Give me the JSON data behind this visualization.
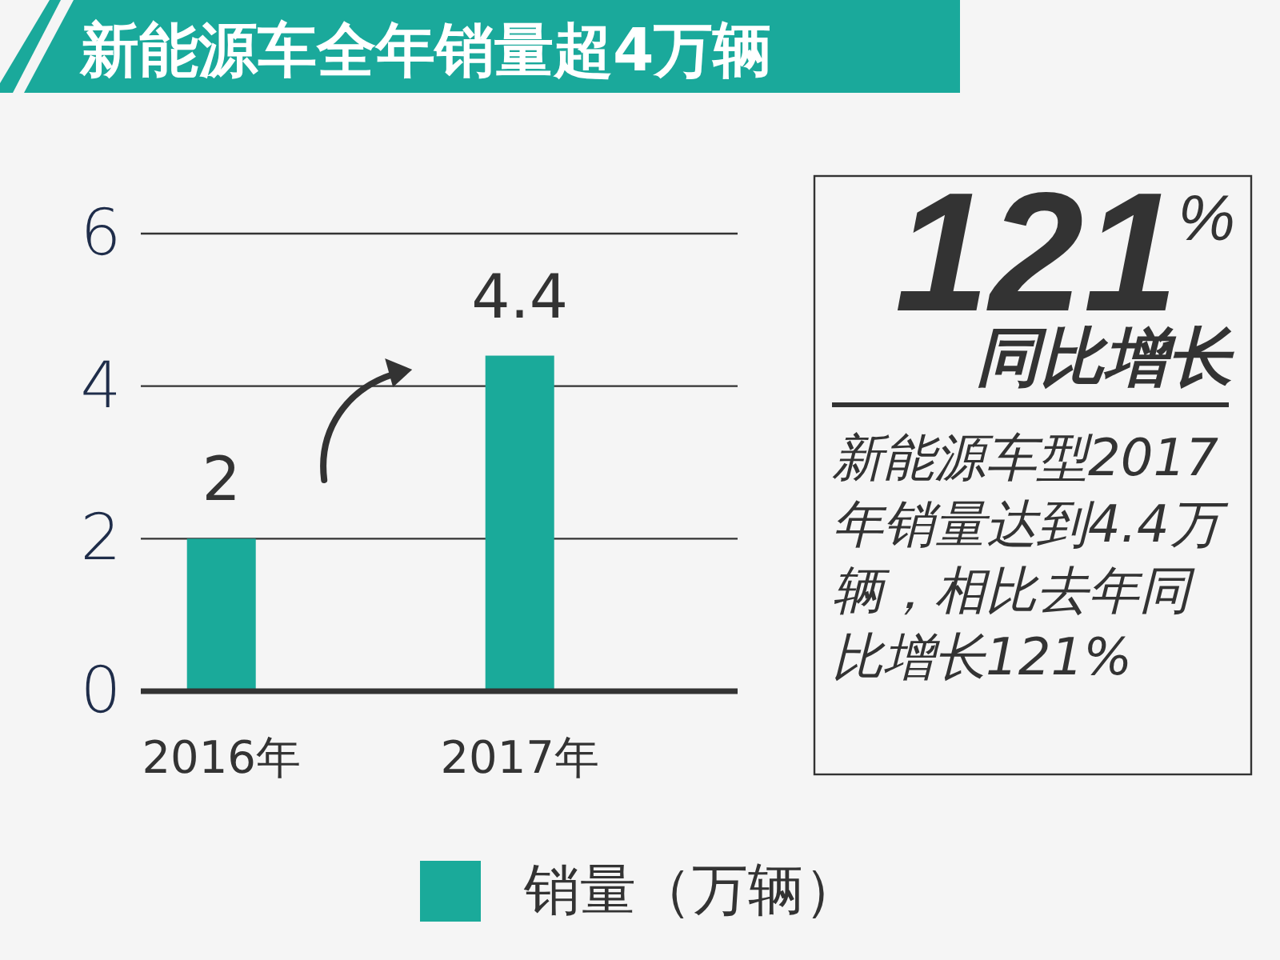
{
  "chart_data": [
    {
      "type": "bar",
      "title": "新能源车全年销量超4万辆",
      "categories": [
        "2016年",
        "2017年"
      ],
      "series": [
        {
          "name": "销量（万辆）",
          "color": "#1aaa9a",
          "values": [
            2,
            4.4
          ]
        }
      ],
      "ylim": [
        0,
        6
      ],
      "yticks": [
        0,
        2,
        4,
        6
      ],
      "grid": "y",
      "legend": "bottom",
      "data_labels": true
    },
    {
      "type": "other",
      "title": "121$^{%}$",
      "subtitle": "同比增长",
      "annotations": [
        "新能源车型2017年销量达到4.4万辆，相比去年同比增长121%"
      ]
    }
  ]
}
